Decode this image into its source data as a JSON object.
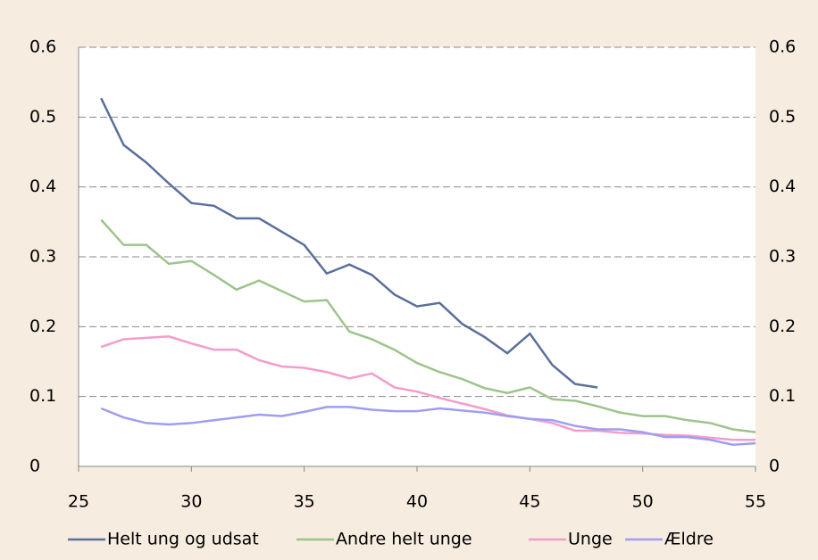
{
  "chart_data": {
    "type": "line",
    "x": [
      26,
      27,
      28,
      29,
      30,
      31,
      32,
      33,
      34,
      35,
      36,
      37,
      38,
      39,
      40,
      41,
      42,
      43,
      44,
      45,
      46,
      47,
      48,
      49,
      50,
      51,
      52,
      53,
      54,
      55
    ],
    "series": [
      {
        "name": "Helt ung og udsat",
        "color": "#5b6f9c",
        "values": [
          0.527,
          0.46,
          0.435,
          0.405,
          0.377,
          0.373,
          0.355,
          0.355,
          0.336,
          0.317,
          0.276,
          0.289,
          0.274,
          0.246,
          0.229,
          0.234,
          0.204,
          0.185,
          0.162,
          0.19,
          0.145,
          0.118,
          0.113,
          null,
          null,
          null,
          null,
          null,
          null,
          null
        ]
      },
      {
        "name": "Andre helt unge",
        "color": "#9dc48b",
        "values": [
          0.353,
          0.317,
          0.317,
          0.29,
          0.294,
          0.274,
          0.253,
          0.266,
          0.251,
          0.236,
          0.238,
          0.193,
          0.182,
          0.167,
          0.148,
          0.135,
          0.125,
          0.112,
          0.105,
          0.113,
          0.096,
          0.094,
          0.086,
          0.077,
          0.072,
          0.072,
          0.066,
          0.062,
          0.053,
          0.049
        ]
      },
      {
        "name": "Unge",
        "color": "#f49ccb",
        "values": [
          0.171,
          0.182,
          0.184,
          0.186,
          0.176,
          0.167,
          0.167,
          0.152,
          0.143,
          0.141,
          0.135,
          0.126,
          0.133,
          0.113,
          0.107,
          0.098,
          0.09,
          0.082,
          0.073,
          0.068,
          0.062,
          0.051,
          0.051,
          0.048,
          0.047,
          0.045,
          0.044,
          0.041,
          0.038,
          0.038
        ]
      },
      {
        "name": "Ældre",
        "color": "#9d9ef2",
        "values": [
          0.083,
          0.07,
          0.062,
          0.06,
          0.062,
          0.066,
          0.07,
          0.074,
          0.072,
          0.078,
          0.085,
          0.085,
          0.081,
          0.079,
          0.079,
          0.083,
          0.08,
          0.077,
          0.072,
          0.068,
          0.066,
          0.058,
          0.053,
          0.053,
          0.049,
          0.042,
          0.042,
          0.038,
          0.031,
          0.033
        ]
      }
    ],
    "xlim": [
      25,
      55
    ],
    "xticks": [
      25,
      30,
      35,
      40,
      45,
      50,
      55
    ],
    "ylim": [
      0,
      0.6
    ],
    "yticks": [
      0,
      0.1,
      0.2,
      0.3,
      0.4,
      0.5,
      0.6
    ],
    "y2lim": [
      0,
      0.6
    ],
    "y2ticks": [
      0,
      0.1,
      0.2,
      0.3,
      0.4,
      0.5,
      0.6
    ],
    "grid": true,
    "legend": "bottom"
  }
}
